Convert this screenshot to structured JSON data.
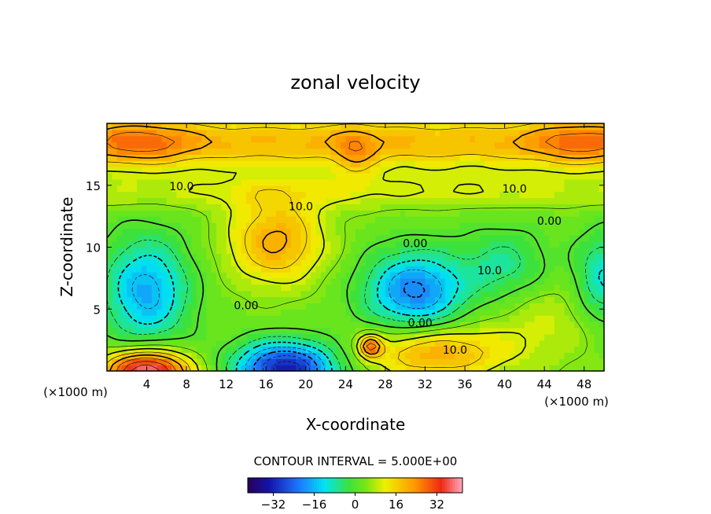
{
  "chart_data": {
    "type": "heatmap",
    "title": "zonal velocity",
    "xlabel": "X-coordinate",
    "ylabel": "Z-coordinate",
    "x_unit_left": "(×1000 m)",
    "x_unit_right": "(×1000 m)",
    "x_ticks": [
      4,
      8,
      12,
      16,
      20,
      24,
      28,
      32,
      36,
      40,
      44,
      48
    ],
    "y_ticks": [
      5,
      10,
      15
    ],
    "xlim": [
      0,
      50
    ],
    "ylim": [
      0,
      20
    ],
    "contour_interval_text": "CONTOUR INTERVAL = 5.000E+00",
    "colorbar": {
      "range": [
        -42,
        42
      ],
      "ticks": [
        -32,
        -16,
        0,
        16,
        32
      ],
      "tick_labels": [
        "−32",
        "−16",
        "0",
        "16",
        "32"
      ]
    },
    "contour_labels": [
      {
        "text": "10.0",
        "x": 7.5,
        "y": 14.6
      },
      {
        "text": "10.0",
        "x": 19.5,
        "y": 13.0
      },
      {
        "text": "10.0",
        "x": 41.0,
        "y": 14.4
      },
      {
        "text": "0.00",
        "x": 44.5,
        "y": 11.8
      },
      {
        "text": "0.00",
        "x": 31.0,
        "y": 10.0
      },
      {
        "text": "10.0",
        "x": 38.5,
        "y": 7.8
      },
      {
        "text": "0.00",
        "x": 14.0,
        "y": 5.0
      },
      {
        "text": "0.00",
        "x": 31.5,
        "y": 3.6
      },
      {
        "text": "10.0",
        "x": 35.0,
        "y": 1.4
      }
    ],
    "features": [
      {
        "label": "upper positive layer",
        "x": 25,
        "y": 18.5,
        "amp": 16,
        "sx": 40,
        "sy": 1.5
      },
      {
        "label": "upper-left max",
        "x": 3,
        "y": 18.5,
        "amp": 12,
        "sx": 4,
        "sy": 1.3
      },
      {
        "label": "upper-right max",
        "x": 48,
        "y": 18.5,
        "amp": 12,
        "sx": 4,
        "sy": 1.3
      },
      {
        "label": "plume",
        "x": 25,
        "y": 17.5,
        "amp": 8,
        "sx": 1.5,
        "sy": 1.5
      },
      {
        "label": "mid band",
        "x": 25,
        "y": 14.5,
        "amp": 7,
        "sx": 30,
        "sy": 1.0
      },
      {
        "label": "center positive",
        "x": 17,
        "y": 10.5,
        "amp": 18,
        "sx": 3.5,
        "sy": 2.5
      },
      {
        "label": "left negative",
        "x": 4,
        "y": 6.5,
        "amp": -20,
        "sx": 3.0,
        "sy": 3.0
      },
      {
        "label": "center-right negative",
        "x": 31,
        "y": 6.5,
        "amp": -24,
        "sx": 3.5,
        "sy": 2.2
      },
      {
        "label": "right negative",
        "x": 40,
        "y": 8.5,
        "amp": -10,
        "sx": 3.0,
        "sy": 2.0
      },
      {
        "label": "far-right negative",
        "x": 50,
        "y": 7.5,
        "amp": -14,
        "sx": 2.0,
        "sy": 2.5
      },
      {
        "label": "bottom negative",
        "x": 18,
        "y": 0.2,
        "amp": -36,
        "sx": 3.5,
        "sy": 1.5
      },
      {
        "label": "bottom-left max",
        "x": 4,
        "y": 0,
        "amp": 38,
        "sx": 3.0,
        "sy": 1.2
      },
      {
        "label": "bottom-right positive",
        "x": 33,
        "y": 1.5,
        "amp": 18,
        "sx": 5.0,
        "sy": 1.5
      },
      {
        "label": "small max",
        "x": 26.5,
        "y": 2.0,
        "amp": 20,
        "sx": 0.8,
        "sy": 0.6
      },
      {
        "label": "right positive",
        "x": 44,
        "y": 4,
        "amp": 6,
        "sx": 4.0,
        "sy": 2.5
      }
    ]
  }
}
